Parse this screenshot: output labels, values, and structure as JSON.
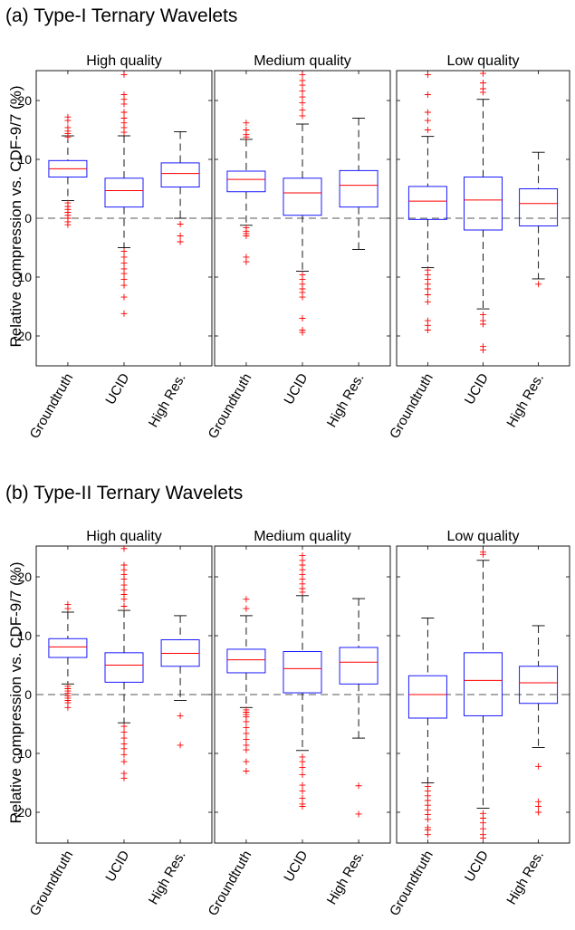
{
  "figure": {
    "ylabel": "Relative compression vs. CDF-9/7 (%)"
  },
  "sections": [
    {
      "title": "(a) Type-I Ternary Wavelets"
    },
    {
      "title": "(b) Type-II Ternary Wavelets"
    }
  ],
  "style": {
    "box_color": "#0000ff",
    "median_color": "#ff0000",
    "outlier_color": "#ff0000",
    "whisker_color": "#000000",
    "axes_color": "#000000"
  },
  "chart_data": [
    {
      "type": "box",
      "section": "(a) Type-I Ternary Wavelets",
      "ylabel": "Relative compression vs. CDF-9/7 (%)",
      "ylim": [
        -25,
        25
      ],
      "yticks": [
        -20,
        -10,
        0,
        10,
        20
      ],
      "reference_line": 0,
      "panels": [
        {
          "title": "High quality",
          "categories": [
            "Groundtruth",
            "UCID",
            "High Res."
          ],
          "boxes": [
            {
              "q1": 7.0,
              "median": 8.4,
              "q3": 9.8,
              "whisker_low": 3.0,
              "whisker_high": 14.0,
              "outliers": [
                17.2,
                16.6,
                15.4,
                14.8,
                14.4,
                13.8,
                2.6,
                2.0,
                1.5,
                1.0,
                0.5,
                0.0,
                -0.6,
                -1.1
              ]
            },
            {
              "q1": 1.9,
              "median": 4.7,
              "q3": 6.8,
              "whisker_low": -5.0,
              "whisker_high": 14.0,
              "outliers": [
                24.4,
                21.0,
                20.2,
                19.4,
                18.0,
                17.0,
                16.2,
                15.4,
                14.6,
                -5.6,
                -6.6,
                -7.6,
                -8.6,
                -9.4,
                -10.4,
                -11.4,
                -13.4,
                -16.2
              ]
            },
            {
              "q1": 5.3,
              "median": 7.6,
              "q3": 9.4,
              "whisker_low": 0.0,
              "whisker_high": 14.7,
              "outliers": [
                -1.0,
                -3.0,
                -4.0
              ]
            }
          ]
        },
        {
          "title": "Medium quality",
          "categories": [
            "Groundtruth",
            "UCID",
            "High Res."
          ],
          "boxes": [
            {
              "q1": 4.5,
              "median": 6.6,
              "q3": 8.0,
              "whisker_low": -1.2,
              "whisker_high": 13.4,
              "outliers": [
                16.2,
                15.0,
                14.2,
                13.8,
                -1.6,
                -2.2,
                -2.6,
                -3.0,
                -6.6,
                -7.4
              ]
            },
            {
              "q1": 0.5,
              "median": 4.3,
              "q3": 6.8,
              "whisker_low": -9.0,
              "whisker_high": 16.0,
              "outliers": [
                24.4,
                23.4,
                22.6,
                21.6,
                20.6,
                19.6,
                18.4,
                17.4,
                -9.6,
                -10.4,
                -11.2,
                -12.0,
                -12.6,
                -13.4,
                -17.0,
                -19.0,
                -19.4
              ]
            },
            {
              "q1": 1.9,
              "median": 5.6,
              "q3": 8.1,
              "whisker_low": -5.3,
              "whisker_high": 17.0,
              "outliers": []
            }
          ]
        },
        {
          "title": "Low quality",
          "categories": [
            "Groundtruth",
            "UCID",
            "High Res."
          ],
          "boxes": [
            {
              "q1": -0.2,
              "median": 2.9,
              "q3": 5.4,
              "whisker_low": -8.4,
              "whisker_high": 13.9,
              "outliers": [
                24.4,
                21.0,
                18.0,
                16.6,
                15.0,
                -8.8,
                -9.6,
                -10.4,
                -11.2,
                -12.0,
                -13.0,
                -14.2,
                -17.4,
                -18.2,
                -19.0
              ]
            },
            {
              "q1": -2.0,
              "median": 3.1,
              "q3": 7.0,
              "whisker_low": -15.4,
              "whisker_high": 20.2,
              "outliers": [
                24.6,
                23.0,
                22.0,
                21.4,
                -16.4,
                -17.4,
                -18.0,
                -21.8,
                -22.4
              ]
            },
            {
              "q1": -1.3,
              "median": 2.5,
              "q3": 5.0,
              "whisker_low": -10.3,
              "whisker_high": 11.2,
              "outliers": [
                -11.2
              ]
            }
          ]
        }
      ]
    },
    {
      "type": "box",
      "section": "(b) Type-II Ternary Wavelets",
      "ylabel": "Relative compression vs. CDF-9/7 (%)",
      "ylim": [
        -25,
        25
      ],
      "yticks": [
        -20,
        -10,
        0,
        10,
        20
      ],
      "reference_line": 0,
      "panels": [
        {
          "title": "High quality",
          "categories": [
            "Groundtruth",
            "UCID",
            "High Res."
          ],
          "boxes": [
            {
              "q1": 6.3,
              "median": 8.1,
              "q3": 9.5,
              "whisker_low": 1.8,
              "whisker_high": 14.0,
              "outliers": [
                15.3,
                14.6,
                1.4,
                1.0,
                0.6,
                0.2,
                -0.2,
                -0.6,
                -1.0,
                -1.4,
                -2.2
              ]
            },
            {
              "q1": 2.1,
              "median": 5.0,
              "q3": 7.1,
              "whisker_low": -4.8,
              "whisker_high": 14.3,
              "outliers": [
                24.8,
                22.0,
                21.2,
                20.4,
                19.6,
                18.6,
                17.8,
                17.0,
                16.2,
                15.0,
                -5.4,
                -6.4,
                -7.4,
                -8.4,
                -9.2,
                -10.2,
                -11.4,
                -13.4,
                -14.2
              ]
            },
            {
              "q1": 4.8,
              "median": 7.0,
              "q3": 9.3,
              "whisker_low": -1.0,
              "whisker_high": 13.4,
              "outliers": [
                -3.6,
                -8.6
              ]
            }
          ]
        },
        {
          "title": "Medium quality",
          "categories": [
            "Groundtruth",
            "UCID",
            "High Res."
          ],
          "boxes": [
            {
              "q1": 3.7,
              "median": 5.9,
              "q3": 7.7,
              "whisker_low": -2.2,
              "whisker_high": 13.4,
              "outliers": [
                16.2,
                14.6,
                -2.6,
                -3.0,
                -3.4,
                -3.8,
                -4.6,
                -5.6,
                -6.6,
                -7.6,
                -8.6,
                -9.4,
                -11.4,
                -13.0
              ]
            },
            {
              "q1": 0.3,
              "median": 4.4,
              "q3": 7.3,
              "whisker_low": -9.5,
              "whisker_high": 16.8,
              "outliers": [
                23.6,
                22.8,
                22.0,
                21.2,
                20.4,
                19.6,
                18.8,
                18.0,
                17.4,
                -10.6,
                -11.4,
                -12.4,
                -13.6,
                -15.4,
                -16.4,
                -17.6,
                -18.6,
                -19.0
              ]
            },
            {
              "q1": 1.8,
              "median": 5.5,
              "q3": 8.0,
              "whisker_low": -7.4,
              "whisker_high": 16.3,
              "outliers": [
                -15.5,
                -20.3
              ]
            }
          ]
        },
        {
          "title": "Low quality",
          "categories": [
            "Groundtruth",
            "UCID",
            "High Res."
          ],
          "boxes": [
            {
              "q1": -4.0,
              "median": 0.0,
              "q3": 3.2,
              "whisker_low": -15.0,
              "whisker_high": 13.0,
              "outliers": [
                -15.6,
                -16.4,
                -17.2,
                -18.0,
                -18.8,
                -19.6,
                -20.4,
                -21.2,
                -22.6,
                -23.0,
                -23.8
              ]
            },
            {
              "q1": -3.6,
              "median": 2.4,
              "q3": 7.1,
              "whisker_low": -19.3,
              "whisker_high": 22.8,
              "outliers": [
                24.2,
                23.8,
                -20.2,
                -21.0,
                -21.8,
                -22.8,
                -23.8,
                -24.4
              ]
            },
            {
              "q1": -1.5,
              "median": 2.0,
              "q3": 4.8,
              "whisker_low": -9.0,
              "whisker_high": 11.7,
              "outliers": [
                -12.2,
                -18.2,
                -19.0,
                -20.0
              ]
            }
          ]
        }
      ]
    }
  ]
}
